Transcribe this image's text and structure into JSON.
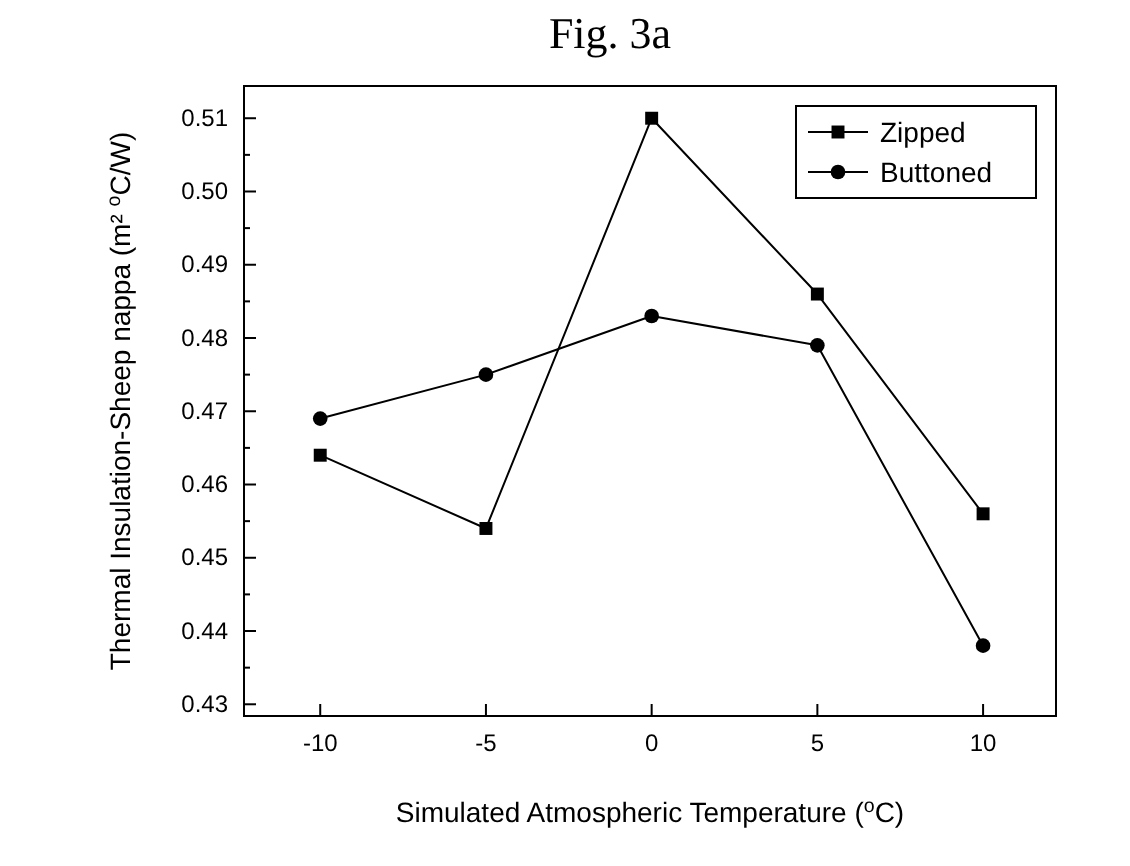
{
  "chart_data": {
    "type": "line",
    "title": "Fig. 3a",
    "xlabel": "Simulated Atmospheric Temperature ($^{o}$C)",
    "ylabel": "Thermal Insulation-Sheep nappa (m² $^{o}$C/W)",
    "x": [
      -10,
      -5,
      0,
      5,
      10
    ],
    "series": [
      {
        "name": "Zipped",
        "color": "#000000",
        "marker": "square",
        "values": [
          0.464,
          0.454,
          0.51,
          0.486,
          0.456
        ]
      },
      {
        "name": "Buttoned",
        "color": "#000000",
        "marker": "circle",
        "values": [
          0.469,
          0.475,
          0.483,
          0.479,
          0.438
        ]
      }
    ],
    "xlim": [
      -12.3,
      12.2
    ],
    "xticks": [
      -10,
      -5,
      0,
      5,
      10
    ],
    "ylim": [
      0.4284,
      0.5144
    ],
    "yticks": [
      {
        "value": 0.43,
        "label": "0.43"
      },
      {
        "value": 0.435,
        "label": null
      },
      {
        "value": 0.44,
        "label": "0.44"
      },
      {
        "value": 0.445,
        "label": null
      },
      {
        "value": 0.45,
        "label": "0.45"
      },
      {
        "value": 0.455,
        "label": null
      },
      {
        "value": 0.46,
        "label": "0.46"
      },
      {
        "value": 0.465,
        "label": null
      },
      {
        "value": 0.47,
        "label": "0.47"
      },
      {
        "value": 0.475,
        "label": null
      },
      {
        "value": 0.48,
        "label": "0.48"
      },
      {
        "value": 0.485,
        "label": null
      },
      {
        "value": 0.49,
        "label": "0.49"
      },
      {
        "value": 0.495,
        "label": null
      },
      {
        "value": 0.5,
        "label": "0.50"
      },
      {
        "value": 0.505,
        "label": null
      },
      {
        "value": 0.51,
        "label": "0.51"
      }
    ],
    "grid": false,
    "legend": "top right",
    "line_style": "solid"
  }
}
